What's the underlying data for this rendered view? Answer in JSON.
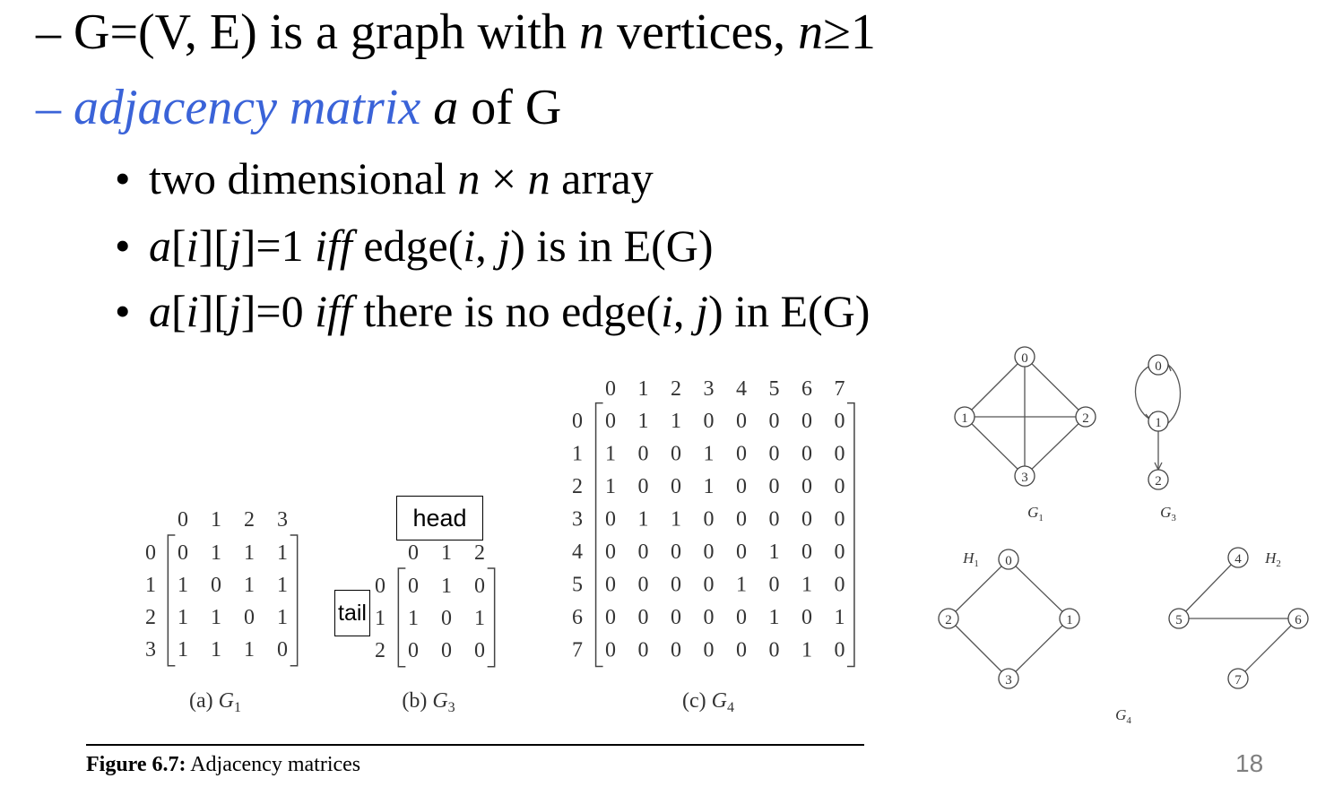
{
  "line1": {
    "dash": "–",
    "pre": "G=(V, E) is a graph with ",
    "n": "n",
    "mid": " vertices, ",
    "n2": "n",
    "post": "≥1"
  },
  "line2": {
    "dash": "–",
    "term": "adjacency matrix",
    "a": "a",
    "post": " of G"
  },
  "bullets": [
    {
      "text_a": "two dimensional ",
      "n1": "n",
      "times": " × ",
      "n2": "n",
      "text_b": " array"
    },
    {
      "a": "a",
      "b1": "[",
      "i": "i",
      "b2": "][",
      "j": "j",
      "b3": "]=1 ",
      "iff": "iff",
      "mid": " edge(",
      "i2": "i",
      "comma": ", ",
      "j2": "j",
      "post": ") is in E(G)"
    },
    {
      "a": "a",
      "b1": "[",
      "i": "i",
      "b2": "][",
      "j": "j",
      "b3": "]=0 ",
      "iff": "iff",
      "mid": "  there is no edge(",
      "i2": "i",
      "comma": ", ",
      "j2": "j",
      "post": ") in E(G)"
    }
  ],
  "head_label": "head",
  "tail_label": "tail",
  "matrices": {
    "g1": {
      "caption_a": "(a) ",
      "caption_g": "G",
      "caption_sub": "1",
      "headers": [
        "0",
        "1",
        "2",
        "3"
      ],
      "rows": [
        [
          "0",
          "1",
          "1",
          "1"
        ],
        [
          "1",
          "0",
          "1",
          "1"
        ],
        [
          "1",
          "1",
          "0",
          "1"
        ],
        [
          "1",
          "1",
          "1",
          "0"
        ]
      ]
    },
    "g3": {
      "caption_a": "(b) ",
      "caption_g": "G",
      "caption_sub": "3",
      "headers": [
        "0",
        "1",
        "2"
      ],
      "rows": [
        [
          "0",
          "1",
          "0"
        ],
        [
          "1",
          "0",
          "1"
        ],
        [
          "0",
          "0",
          "0"
        ]
      ]
    },
    "g4": {
      "caption_a": "(c) ",
      "caption_g": "G",
      "caption_sub": "4",
      "headers": [
        "0",
        "1",
        "2",
        "3",
        "4",
        "5",
        "6",
        "7"
      ],
      "rows": [
        [
          "0",
          "1",
          "1",
          "0",
          "0",
          "0",
          "0",
          "0"
        ],
        [
          "1",
          "0",
          "0",
          "1",
          "0",
          "0",
          "0",
          "0"
        ],
        [
          "1",
          "0",
          "0",
          "1",
          "0",
          "0",
          "0",
          "0"
        ],
        [
          "0",
          "1",
          "1",
          "0",
          "0",
          "0",
          "0",
          "0"
        ],
        [
          "0",
          "0",
          "0",
          "0",
          "0",
          "1",
          "0",
          "0"
        ],
        [
          "0",
          "0",
          "0",
          "0",
          "1",
          "0",
          "1",
          "0"
        ],
        [
          "0",
          "0",
          "0",
          "0",
          "0",
          "1",
          "0",
          "1"
        ],
        [
          "0",
          "0",
          "0",
          "0",
          "0",
          "0",
          "1",
          "0"
        ]
      ]
    }
  },
  "graphs": {
    "g1_label": "G",
    "g1_sub": "1",
    "g3_label": "G",
    "g3_sub": "3",
    "g4_label": "G",
    "g4_sub": "4",
    "h1_label": "H",
    "h1_sub": "1",
    "h2_label": "H",
    "h2_sub": "2",
    "g1_nodes": [
      "0",
      "1",
      "2",
      "3"
    ],
    "g3_nodes": [
      "0",
      "1",
      "2"
    ],
    "h1_nodes": [
      "0",
      "2",
      "1",
      "3"
    ],
    "h2_nodes": [
      "4",
      "5",
      "6",
      "7"
    ]
  },
  "figure": {
    "bold": "Figure 6.7:",
    "text": " Adjacency matrices"
  },
  "page_number": "18"
}
